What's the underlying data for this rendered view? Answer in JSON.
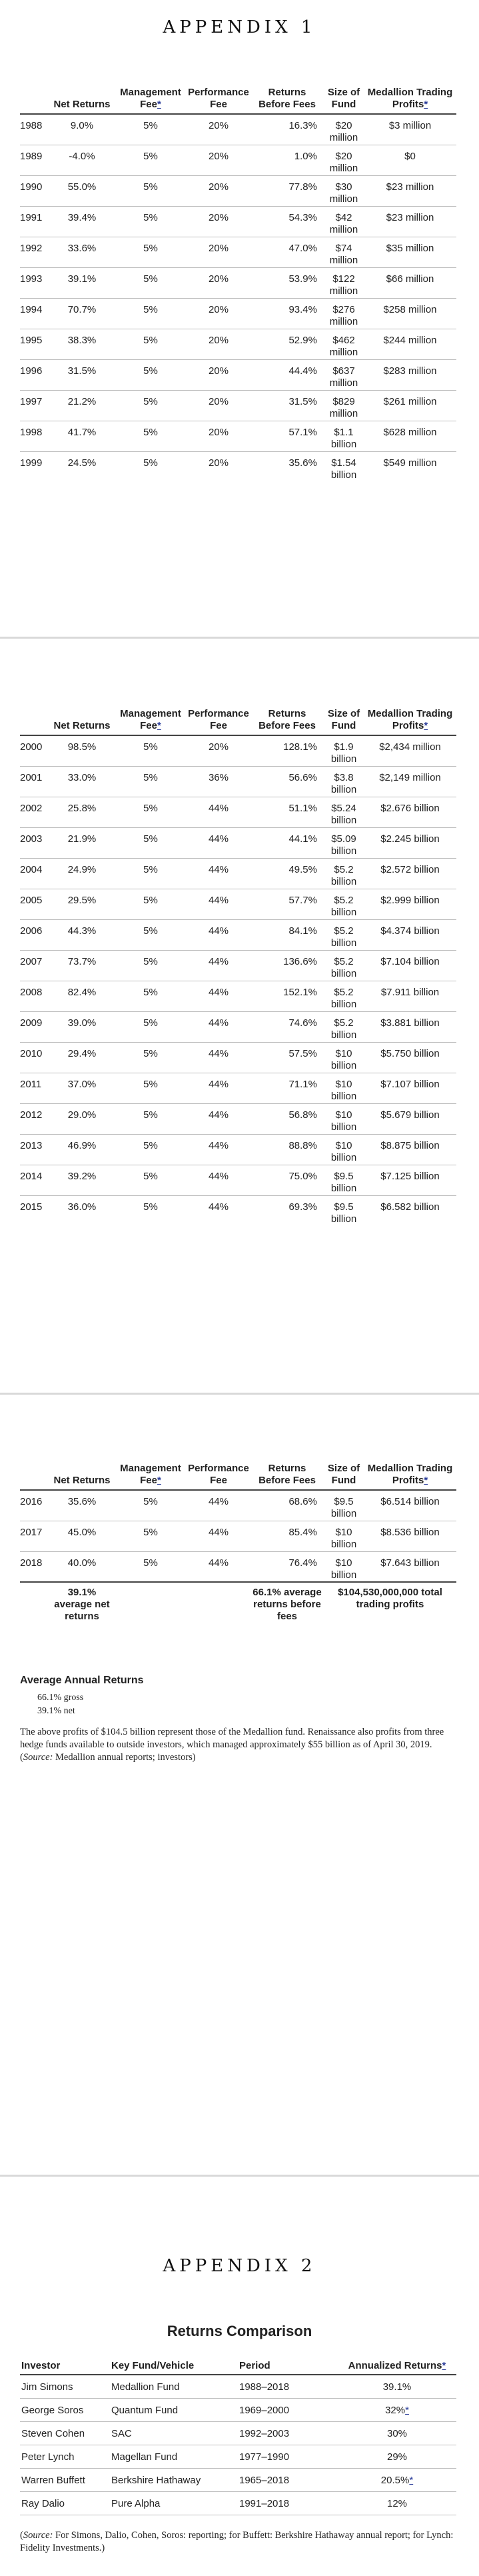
{
  "appendix1": {
    "title": "APPENDIX 1",
    "headers": {
      "net_returns": "Net Returns",
      "management_fee": "Management Fee",
      "management_fee_mark": "*",
      "performance_fee": "Performance Fee",
      "returns_before_fees": "Returns Before Fees",
      "size_of_fund": "Size of Fund",
      "medallion_profits": "Medallion Trading Profits",
      "medallion_profits_mark": "*"
    },
    "rows_page1": [
      {
        "year": "1988",
        "net": "9.0%",
        "mgmt": "5%",
        "perf": "20%",
        "before": "16.3%",
        "size": "$20 million",
        "profits": "$3 million"
      },
      {
        "year": "1989",
        "net": "-4.0%",
        "mgmt": "5%",
        "perf": "20%",
        "before": "1.0%",
        "size": "$20 million",
        "profits": "$0"
      },
      {
        "year": "1990",
        "net": "55.0%",
        "mgmt": "5%",
        "perf": "20%",
        "before": "77.8%",
        "size": "$30 million",
        "profits": "$23 million"
      },
      {
        "year": "1991",
        "net": "39.4%",
        "mgmt": "5%",
        "perf": "20%",
        "before": "54.3%",
        "size": "$42 million",
        "profits": "$23 million"
      },
      {
        "year": "1992",
        "net": "33.6%",
        "mgmt": "5%",
        "perf": "20%",
        "before": "47.0%",
        "size": "$74 million",
        "profits": "$35 million"
      },
      {
        "year": "1993",
        "net": "39.1%",
        "mgmt": "5%",
        "perf": "20%",
        "before": "53.9%",
        "size": "$122 million",
        "profits": "$66 million"
      },
      {
        "year": "1994",
        "net": "70.7%",
        "mgmt": "5%",
        "perf": "20%",
        "before": "93.4%",
        "size": "$276 million",
        "profits": "$258 million"
      },
      {
        "year": "1995",
        "net": "38.3%",
        "mgmt": "5%",
        "perf": "20%",
        "before": "52.9%",
        "size": "$462 million",
        "profits": "$244 million"
      },
      {
        "year": "1996",
        "net": "31.5%",
        "mgmt": "5%",
        "perf": "20%",
        "before": "44.4%",
        "size": "$637 million",
        "profits": "$283 million"
      },
      {
        "year": "1997",
        "net": "21.2%",
        "mgmt": "5%",
        "perf": "20%",
        "before": "31.5%",
        "size": "$829 million",
        "profits": "$261 million"
      },
      {
        "year": "1998",
        "net": "41.7%",
        "mgmt": "5%",
        "perf": "20%",
        "before": "57.1%",
        "size": "$1.1 billion",
        "profits": "$628 million"
      },
      {
        "year": "1999",
        "net": "24.5%",
        "mgmt": "5%",
        "perf": "20%",
        "before": "35.6%",
        "size": "$1.54 billion",
        "profits": "$549 million"
      }
    ],
    "rows_page2": [
      {
        "year": "2000",
        "net": "98.5%",
        "mgmt": "5%",
        "perf": "20%",
        "before": "128.1%",
        "size": "$1.9 billion",
        "profits": "$2,434 million"
      },
      {
        "year": "2001",
        "net": "33.0%",
        "mgmt": "5%",
        "perf": "36%",
        "before": "56.6%",
        "size": "$3.8 billion",
        "profits": "$2,149 million"
      },
      {
        "year": "2002",
        "net": "25.8%",
        "mgmt": "5%",
        "perf": "44%",
        "before": "51.1%",
        "size": "$5.24 billion",
        "profits": "$2.676 billion"
      },
      {
        "year": "2003",
        "net": "21.9%",
        "mgmt": "5%",
        "perf": "44%",
        "before": "44.1%",
        "size": "$5.09 billion",
        "profits": "$2.245 billion"
      },
      {
        "year": "2004",
        "net": "24.9%",
        "mgmt": "5%",
        "perf": "44%",
        "before": "49.5%",
        "size": "$5.2 billion",
        "profits": "$2.572 billion"
      },
      {
        "year": "2005",
        "net": "29.5%",
        "mgmt": "5%",
        "perf": "44%",
        "before": "57.7%",
        "size": "$5.2 billion",
        "profits": "$2.999 billion"
      },
      {
        "year": "2006",
        "net": "44.3%",
        "mgmt": "5%",
        "perf": "44%",
        "before": "84.1%",
        "size": "$5.2 billion",
        "profits": "$4.374 billion"
      },
      {
        "year": "2007",
        "net": "73.7%",
        "mgmt": "5%",
        "perf": "44%",
        "before": "136.6%",
        "size": "$5.2 billion",
        "profits": "$7.104 billion"
      },
      {
        "year": "2008",
        "net": "82.4%",
        "mgmt": "5%",
        "perf": "44%",
        "before": "152.1%",
        "size": "$5.2 billion",
        "profits": "$7.911 billion"
      },
      {
        "year": "2009",
        "net": "39.0%",
        "mgmt": "5%",
        "perf": "44%",
        "before": "74.6%",
        "size": "$5.2 billion",
        "profits": "$3.881 billion"
      },
      {
        "year": "2010",
        "net": "29.4%",
        "mgmt": "5%",
        "perf": "44%",
        "before": "57.5%",
        "size": "$10 billion",
        "profits": "$5.750 billion"
      },
      {
        "year": "2011",
        "net": "37.0%",
        "mgmt": "5%",
        "perf": "44%",
        "before": "71.1%",
        "size": "$10 billion",
        "profits": "$7.107 billion"
      },
      {
        "year": "2012",
        "net": "29.0%",
        "mgmt": "5%",
        "perf": "44%",
        "before": "56.8%",
        "size": "$10 billion",
        "profits": "$5.679 billion"
      },
      {
        "year": "2013",
        "net": "46.9%",
        "mgmt": "5%",
        "perf": "44%",
        "before": "88.8%",
        "size": "$10 billion",
        "profits": "$8.875 billion"
      },
      {
        "year": "2014",
        "net": "39.2%",
        "mgmt": "5%",
        "perf": "44%",
        "before": "75.0%",
        "size": "$9.5 billion",
        "profits": "$7.125 billion"
      },
      {
        "year": "2015",
        "net": "36.0%",
        "mgmt": "5%",
        "perf": "44%",
        "before": "69.3%",
        "size": "$9.5 billion",
        "profits": "$6.582 billion"
      }
    ],
    "rows_page3": [
      {
        "year": "2016",
        "net": "35.6%",
        "mgmt": "5%",
        "perf": "44%",
        "before": "68.6%",
        "size": "$9.5 billion",
        "profits": "$6.514 billion"
      },
      {
        "year": "2017",
        "net": "45.0%",
        "mgmt": "5%",
        "perf": "44%",
        "before": "85.4%",
        "size": "$10 billion",
        "profits": "$8.536 billion"
      },
      {
        "year": "2018",
        "net": "40.0%",
        "mgmt": "5%",
        "perf": "44%",
        "before": "76.4%",
        "size": "$10 billion",
        "profits": "$7.643 billion"
      }
    ],
    "totals": {
      "net": "39.1% average net returns",
      "before": "66.1% average returns before fees",
      "profits": "$104,530,000,000 total trading profits"
    },
    "average_annual": {
      "heading": "Average Annual Returns",
      "gross": "66.1% gross",
      "net": "39.1% net"
    },
    "note_main": "The above profits of $104.5 billion represent those of the Medallion fund. Renaissance also profits from three hedge funds available to outside investors, which managed approximately $55 billion as of April 30, 2019. (",
    "note_source_label": "Source:",
    "note_source_text": " Medallion annual reports; investors)"
  },
  "appendix2": {
    "title": "APPENDIX 2",
    "table_title": "Returns Comparison",
    "headers": {
      "investor": "Investor",
      "fund": "Key Fund/Vehicle",
      "period": "Period",
      "returns": "Annualized Returns",
      "returns_mark": "*"
    },
    "rows": [
      {
        "investor": "Jim Simons",
        "fund": "Medallion Fund",
        "period": "1988–2018",
        "ret": "39.1%",
        "mark": ""
      },
      {
        "investor": "George Soros",
        "fund": "Quantum Fund",
        "period": "1969–2000",
        "ret": "32%",
        "mark": "*"
      },
      {
        "investor": "Steven Cohen",
        "fund": "SAC",
        "period": "1992–2003",
        "ret": "30%",
        "mark": ""
      },
      {
        "investor": "Peter Lynch",
        "fund": "Magellan Fund",
        "period": "1977–1990",
        "ret": "29%",
        "mark": ""
      },
      {
        "investor": "Warren Buffett",
        "fund": "Berkshire Hathaway",
        "period": "1965–2018",
        "ret": "20.5%",
        "mark": "*"
      },
      {
        "investor": "Ray Dalio",
        "fund": "Pure Alpha",
        "period": "1991–2018",
        "ret": "12%",
        "mark": ""
      }
    ],
    "source_open": "(",
    "source_label": "Source:",
    "source_text": " For Simons, Dalio, Cohen, Soros: reporting; for Buffett: Berkshire Hathaway annual report; for Lynch: Fidelity Investments.)"
  }
}
